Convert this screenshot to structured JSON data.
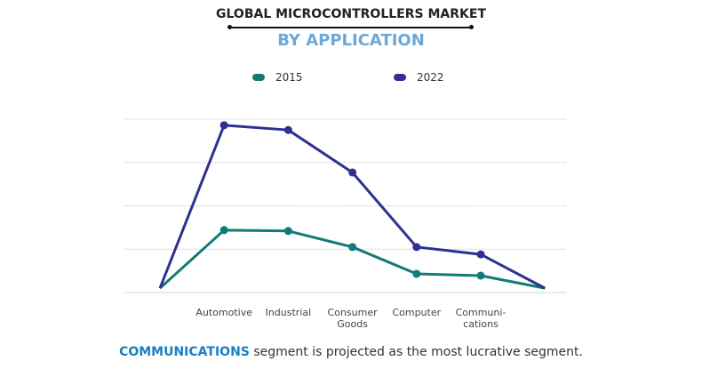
{
  "chart_data": {
    "type": "line",
    "title": "GLOBAL MICROCONTROLLERS MARKET",
    "subtitle": "BY APPLICATION",
    "categories": [
      "",
      "Automotive",
      "Industrial",
      "Consumer Goods",
      "Computer",
      "Communi-cations",
      ""
    ],
    "category_lines": [
      [
        ""
      ],
      [
        "Automotive"
      ],
      [
        "Industrial"
      ],
      [
        "Consumer",
        "Goods"
      ],
      [
        "Computer"
      ],
      [
        "Communi-",
        "cations"
      ],
      [
        ""
      ]
    ],
    "series": [
      {
        "name": "2015",
        "color": "#127a78",
        "values": [
          0.1,
          1.44,
          1.42,
          1.05,
          0.43,
          0.39,
          0.1
        ]
      },
      {
        "name": "2022",
        "color": "#2e3192",
        "values": [
          0.1,
          3.86,
          3.75,
          2.77,
          1.05,
          0.88,
          0.1
        ]
      }
    ],
    "ylim": [
      0,
      4
    ],
    "grid": true,
    "legend_position": "top-center",
    "xlabel": "",
    "ylabel": ""
  },
  "footer": {
    "highlight": "COMMUNICATIONS",
    "text": " segment is projected as the most lucrative segment."
  }
}
